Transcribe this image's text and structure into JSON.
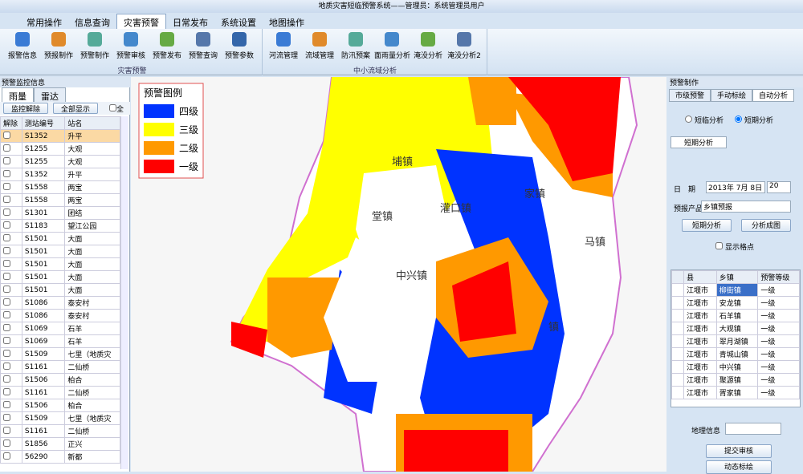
{
  "title_bar": {
    "title": "地质灾害短临预警系统——管理员：系统管理员用户"
  },
  "menu": {
    "tabs": [
      "常用操作",
      "信息查询",
      "灾害预警",
      "日常发布",
      "系统设置",
      "地图操作"
    ]
  },
  "ribbon": {
    "groups": [
      {
        "label": "灾害预警",
        "buttons": [
          "报警信息",
          "预报制作",
          "预警制作",
          "预警审核",
          "预警发布",
          "预警查询",
          "预警参数"
        ]
      },
      {
        "label": "中小流域分析",
        "buttons": [
          "河流管理",
          "流域管理",
          "防汛预案",
          "面雨量分析",
          "淹没分析",
          "淹没分析2"
        ]
      }
    ]
  },
  "left_panel": {
    "title": "预警监控信息",
    "tabs": [
      "雨量",
      "雷达"
    ],
    "buttons": [
      "监控解除",
      "全部显示"
    ],
    "select_all": "全",
    "columns": [
      "解除",
      "测站编号",
      "站名"
    ],
    "rows": [
      [
        "S1352",
        "升平"
      ],
      [
        "S1255",
        "大观"
      ],
      [
        "S1255",
        "大观"
      ],
      [
        "S1352",
        "升平"
      ],
      [
        "S1558",
        "两宝"
      ],
      [
        "S1558",
        "两宝"
      ],
      [
        "S1301",
        "团结"
      ],
      [
        "S1183",
        "望江公园"
      ],
      [
        "S1501",
        "大面"
      ],
      [
        "S1501",
        "大面"
      ],
      [
        "S1501",
        "大面"
      ],
      [
        "S1501",
        "大面"
      ],
      [
        "S1501",
        "大面"
      ],
      [
        "S1086",
        "泰安村"
      ],
      [
        "S1086",
        "泰安村"
      ],
      [
        "S1069",
        "石羊"
      ],
      [
        "S1069",
        "石羊"
      ],
      [
        "S1509",
        "七里（地质灾"
      ],
      [
        "S1161",
        "二仙桥"
      ],
      [
        "S1506",
        "柏合"
      ],
      [
        "S1161",
        "二仙桥"
      ],
      [
        "S1506",
        "柏合"
      ],
      [
        "S1509",
        "七里（地质灾"
      ],
      [
        "S1161",
        "二仙桥"
      ],
      [
        "S1856",
        "正兴"
      ],
      [
        "56290",
        "新都"
      ]
    ]
  },
  "map": {
    "legend": {
      "title": "预警图例",
      "items": [
        {
          "label": "四级",
          "color": "#0033ff"
        },
        {
          "label": "三级",
          "color": "#ffff00"
        },
        {
          "label": "二级",
          "color": "#ff9900"
        },
        {
          "label": "一级",
          "color": "#ff0000"
        }
      ]
    },
    "labels": [
      "埔镇",
      "家镇",
      "堂镇",
      "灌口镇",
      "马镇",
      "中兴镇",
      "镇"
    ]
  },
  "right_panel": {
    "title": "预警制作",
    "tabs": [
      "市级预警",
      "手动标绘",
      "自动分析"
    ],
    "radios": [
      "短临分析",
      "短期分析"
    ],
    "subtab": "短期分析",
    "date_label": "日　期",
    "date": "2013年 7月 8日",
    "hour": "20",
    "product_label": "预报产品",
    "product": "乡镇预报",
    "buttons": [
      "短期分析",
      "分析成图"
    ],
    "checkbox": "显示格点",
    "columns": [
      "县",
      "乡镇",
      "预警等级"
    ],
    "rows": [
      [
        "江堰市",
        "柳街镇",
        "一级"
      ],
      [
        "江堰市",
        "安龙镇",
        "一级"
      ],
      [
        "江堰市",
        "石羊镇",
        "一级"
      ],
      [
        "江堰市",
        "大观镇",
        "一级"
      ],
      [
        "江堰市",
        "翠月湖镇",
        "一级"
      ],
      [
        "江堰市",
        "青城山镇",
        "一级"
      ],
      [
        "江堰市",
        "中兴镇",
        "一级"
      ],
      [
        "江堰市",
        "聚源镇",
        "一级"
      ],
      [
        "江堰市",
        "胥家镇",
        "一级"
      ]
    ],
    "geo_label": "地理信息",
    "actions": [
      "提交审核",
      "动态标绘"
    ]
  }
}
